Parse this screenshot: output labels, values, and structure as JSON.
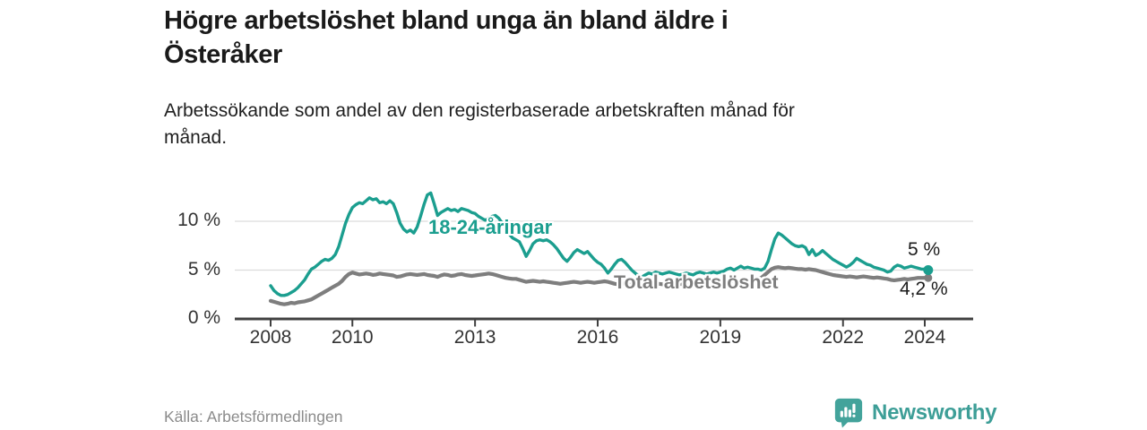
{
  "header": {
    "title": "Högre arbetslöshet bland unga än bland äldre i\nÖsteråker",
    "subtitle": "Arbetssökande som andel av den registerbaserade arbetskraften månad för\nmånad."
  },
  "footer": {
    "source": "Källa: Arbetsförmedlingen",
    "brand": "Newsworthy"
  },
  "colors": {
    "youth_line": "#1b9e8f",
    "total_line": "#7e7e7e",
    "axis_text": "#333333",
    "axis_line": "#404040",
    "gridline": "#dcdcdc",
    "brand_teal": "#3d9e97",
    "end_label_text": "#1c1c1c"
  },
  "chart_data": {
    "type": "line",
    "title": "Högre arbetslöshet bland unga än bland äldre i Österåker",
    "xlabel": "",
    "ylabel": "Arbetssökande som andel av den registerbaserade arbetskraften",
    "x_start_year": 2008,
    "x_step_years": 0.0833333,
    "xlim": [
      2007.5,
      2025.2
    ],
    "ylim": [
      0,
      13.8
    ],
    "grid": "horizontal",
    "legend_position": "inline-labels",
    "x_ticks": [
      {
        "year": 2008,
        "label": "2008"
      },
      {
        "year": 2010,
        "label": "2010"
      },
      {
        "year": 2013,
        "label": "2013"
      },
      {
        "year": 2016,
        "label": "2016"
      },
      {
        "year": 2019,
        "label": "2019"
      },
      {
        "year": 2022,
        "label": "2022"
      },
      {
        "year": 2024,
        "label": "2024"
      }
    ],
    "y_ticks": [
      {
        "value": 0,
        "label": "0 %"
      },
      {
        "value": 5,
        "label": "5 %"
      },
      {
        "value": 10,
        "label": "10 %"
      }
    ],
    "series": [
      {
        "name": "total-arbetsloshet",
        "label": "Total arbetslöshet",
        "color": "#7e7e7e",
        "end_label": "4,2 %",
        "end_value": 4.2,
        "values": [
          1.85,
          1.75,
          1.65,
          1.55,
          1.5,
          1.55,
          1.65,
          1.6,
          1.7,
          1.75,
          1.8,
          1.9,
          2.0,
          2.2,
          2.4,
          2.6,
          2.8,
          3.0,
          3.2,
          3.4,
          3.6,
          3.9,
          4.3,
          4.6,
          4.75,
          4.65,
          4.55,
          4.6,
          4.65,
          4.6,
          4.5,
          4.55,
          4.65,
          4.6,
          4.55,
          4.5,
          4.45,
          4.3,
          4.35,
          4.45,
          4.55,
          4.6,
          4.55,
          4.5,
          4.55,
          4.6,
          4.5,
          4.45,
          4.4,
          4.3,
          4.45,
          4.55,
          4.5,
          4.4,
          4.45,
          4.55,
          4.6,
          4.5,
          4.45,
          4.4,
          4.45,
          4.5,
          4.55,
          4.6,
          4.65,
          4.6,
          4.5,
          4.4,
          4.3,
          4.2,
          4.15,
          4.1,
          4.1,
          4.0,
          3.9,
          3.8,
          3.85,
          3.9,
          3.85,
          3.8,
          3.85,
          3.8,
          3.75,
          3.7,
          3.65,
          3.6,
          3.65,
          3.7,
          3.75,
          3.8,
          3.75,
          3.7,
          3.75,
          3.8,
          3.75,
          3.7,
          3.75,
          3.8,
          3.85,
          3.8,
          3.7,
          3.6,
          3.55,
          3.6,
          3.65,
          3.6,
          3.55,
          3.6,
          3.6,
          3.65,
          3.6,
          3.55,
          3.6,
          3.65,
          3.6,
          3.55,
          3.5,
          3.55,
          3.6,
          3.65,
          3.6,
          3.55,
          3.5,
          3.45,
          3.5,
          3.55,
          3.5,
          3.45,
          3.5,
          3.55,
          3.6,
          3.65,
          3.7,
          3.75,
          3.8,
          3.85,
          3.9,
          3.95,
          4.0,
          4.05,
          4.0,
          4.0,
          4.05,
          4.1,
          4.2,
          4.5,
          4.8,
          5.1,
          5.25,
          5.3,
          5.25,
          5.2,
          5.25,
          5.2,
          5.15,
          5.1,
          5.1,
          5.05,
          5.1,
          5.05,
          5.0,
          4.9,
          4.8,
          4.7,
          4.6,
          4.5,
          4.45,
          4.4,
          4.35,
          4.3,
          4.35,
          4.3,
          4.25,
          4.3,
          4.35,
          4.3,
          4.25,
          4.2,
          4.25,
          4.2,
          4.15,
          4.1,
          4.0,
          3.95,
          4.0,
          4.05,
          4.1,
          4.05,
          4.1,
          4.15,
          4.2,
          4.2,
          4.2,
          4.2
        ]
      },
      {
        "name": "18-24-aringar",
        "label": "18-24-åringar",
        "color": "#1b9e8f",
        "end_label": "5 %",
        "end_value": 5.0,
        "values": [
          3.4,
          2.9,
          2.6,
          2.4,
          2.4,
          2.5,
          2.7,
          2.9,
          3.2,
          3.6,
          4.0,
          4.6,
          5.1,
          5.3,
          5.6,
          5.9,
          6.1,
          6.0,
          6.2,
          6.6,
          7.4,
          8.6,
          9.8,
          10.7,
          11.4,
          11.7,
          11.9,
          11.8,
          12.1,
          12.4,
          12.2,
          12.3,
          11.9,
          12.0,
          11.8,
          12.1,
          11.8,
          10.9,
          9.8,
          9.2,
          8.9,
          9.1,
          8.8,
          9.4,
          10.5,
          11.7,
          12.7,
          12.9,
          11.8,
          10.6,
          10.9,
          11.1,
          11.3,
          11.1,
          11.2,
          11.0,
          11.3,
          11.2,
          11.1,
          10.9,
          10.8,
          10.5,
          10.3,
          10.1,
          10.3,
          10.5,
          10.6,
          10.3,
          9.8,
          9.3,
          8.7,
          8.3,
          8.1,
          7.9,
          7.2,
          6.4,
          7.0,
          7.7,
          8.0,
          8.1,
          8.0,
          8.1,
          7.9,
          7.6,
          7.2,
          6.7,
          6.2,
          5.9,
          6.3,
          6.8,
          7.1,
          6.9,
          6.7,
          6.9,
          6.5,
          6.1,
          5.8,
          5.6,
          5.2,
          4.7,
          5.1,
          5.6,
          6.0,
          6.1,
          5.8,
          5.4,
          5.0,
          4.7,
          4.4,
          4.3,
          4.5,
          4.7,
          4.6,
          4.8,
          4.7,
          4.6,
          4.7,
          4.8,
          4.7,
          4.6,
          4.5,
          4.6,
          4.7,
          4.6,
          4.5,
          4.7,
          4.8,
          4.7,
          4.6,
          4.7,
          4.8,
          4.7,
          4.8,
          4.9,
          5.1,
          5.2,
          5.0,
          5.2,
          5.4,
          5.2,
          5.3,
          5.2,
          5.1,
          5.1,
          5.0,
          5.2,
          5.9,
          7.1,
          8.2,
          8.8,
          8.6,
          8.3,
          8.0,
          7.7,
          7.5,
          7.4,
          7.5,
          7.3,
          6.6,
          7.1,
          6.5,
          6.7,
          7.0,
          6.7,
          6.4,
          6.1,
          5.9,
          5.7,
          5.5,
          5.3,
          5.5,
          5.8,
          6.2,
          6.0,
          5.8,
          5.6,
          5.5,
          5.3,
          5.2,
          5.1,
          5.0,
          4.8,
          4.9,
          5.3,
          5.5,
          5.4,
          5.2,
          5.3,
          5.4,
          5.3,
          5.2,
          5.1,
          5.1,
          5.0
        ]
      }
    ]
  }
}
